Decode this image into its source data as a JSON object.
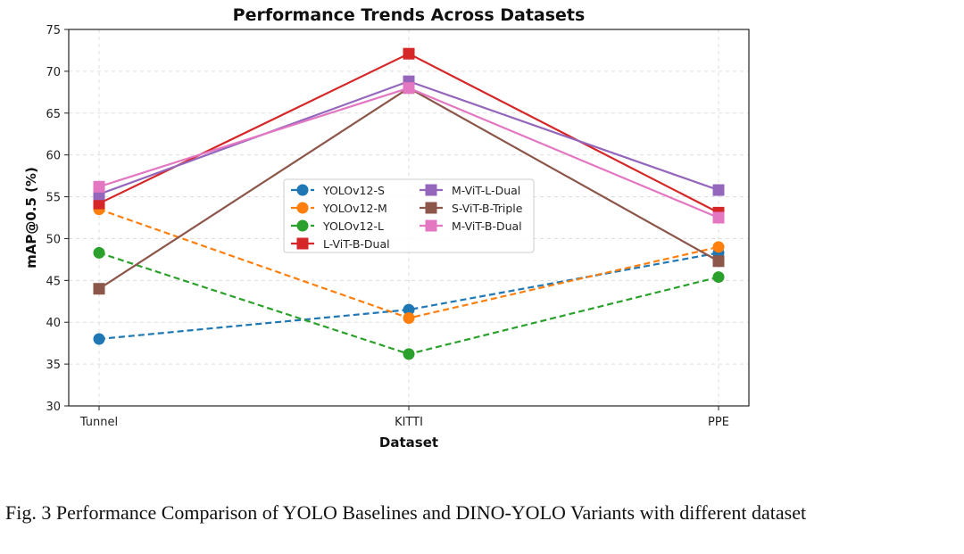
{
  "chart_data": {
    "type": "line",
    "title": "Performance Trends Across Datasets",
    "xlabel": "Dataset",
    "ylabel": "mAP@0.5 (%)",
    "categories": [
      "Tunnel",
      "KITTI",
      "PPE"
    ],
    "ylim": [
      30,
      75
    ],
    "yticks": [
      30,
      35,
      40,
      45,
      50,
      55,
      60,
      65,
      70,
      75
    ],
    "grid": true,
    "legend_position": "center",
    "series": [
      {
        "name": "YOLOv12-S",
        "values": [
          38.0,
          41.5,
          48.3
        ],
        "color": "#1f77b4",
        "dashed": true,
        "marker": "circle"
      },
      {
        "name": "YOLOv12-M",
        "values": [
          53.5,
          40.5,
          49.0
        ],
        "color": "#ff7f0e",
        "dashed": true,
        "marker": "circle"
      },
      {
        "name": "YOLOv12-L",
        "values": [
          48.3,
          36.2,
          45.4
        ],
        "color": "#2ca02c",
        "dashed": true,
        "marker": "circle"
      },
      {
        "name": "L-ViT-B-Dual",
        "values": [
          54.2,
          72.1,
          53.1
        ],
        "color": "#d62728",
        "dashed": false,
        "marker": "square"
      },
      {
        "name": "M-ViT-L-Dual",
        "values": [
          55.3,
          68.8,
          55.8
        ],
        "color": "#9467bd",
        "dashed": false,
        "marker": "square"
      },
      {
        "name": "S-ViT-B-Triple",
        "values": [
          44.0,
          68.0,
          47.3
        ],
        "color": "#8c564b",
        "dashed": false,
        "marker": "square"
      },
      {
        "name": "M-ViT-B-Dual",
        "values": [
          56.2,
          68.0,
          52.5
        ],
        "color": "#e377c2",
        "dashed": false,
        "marker": "square"
      }
    ]
  },
  "caption": "Fig. 3 Performance Comparison of YOLO Baselines and DINO-YOLO Variants with different dataset"
}
